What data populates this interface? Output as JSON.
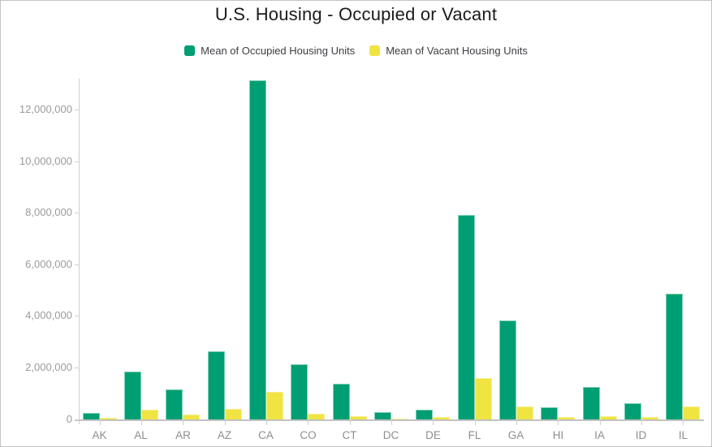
{
  "title": "U.S. Housing - Occupied or Vacant",
  "legend": {
    "items": [
      {
        "label": "Mean of Occupied Housing Units",
        "color": "#009e73"
      },
      {
        "label": "Mean of Vacant Housing Units",
        "color": "#f0e442"
      }
    ]
  },
  "colors": {
    "occupied_fill": "#009e73",
    "occupied_edge": "#7fd0b2",
    "vacant_fill": "#f0e442",
    "vacant_edge": "#f6ef96",
    "axis_line": "#cfcfcf",
    "tick_label": "#9b9b9b",
    "title_text": "#1b1b1b"
  },
  "chart_data": {
    "type": "bar",
    "title": "U.S. Housing - Occupied or Vacant",
    "xlabel": "",
    "ylabel": "",
    "grid": false,
    "legend_position": "top",
    "categories": [
      "AK",
      "AL",
      "AR",
      "AZ",
      "CA",
      "CO",
      "CT",
      "DC",
      "DE",
      "FL",
      "GA",
      "HI",
      "IA",
      "ID",
      "IL"
    ],
    "series": [
      {
        "name": "Mean of Occupied Housing Units",
        "color": "#009e73",
        "values": [
          250000,
          1870000,
          1150000,
          2630000,
          13150000,
          2150000,
          1370000,
          280000,
          370000,
          7940000,
          3830000,
          460000,
          1270000,
          640000,
          4890000
        ]
      },
      {
        "name": "Mean of Vacant Housing Units",
        "color": "#f0e442",
        "values": [
          60000,
          380000,
          200000,
          410000,
          1080000,
          210000,
          130000,
          40000,
          80000,
          1620000,
          490000,
          90000,
          140000,
          100000,
          500000
        ]
      }
    ],
    "ylim": [
      0,
      13200000
    ],
    "yticks": [
      0,
      2000000,
      4000000,
      6000000,
      8000000,
      10000000,
      12000000
    ],
    "ytick_labels": [
      "0",
      "2,000,000",
      "4,000,000",
      "6,000,000",
      "8,000,000",
      "10,000,000",
      "12,000,000"
    ]
  }
}
